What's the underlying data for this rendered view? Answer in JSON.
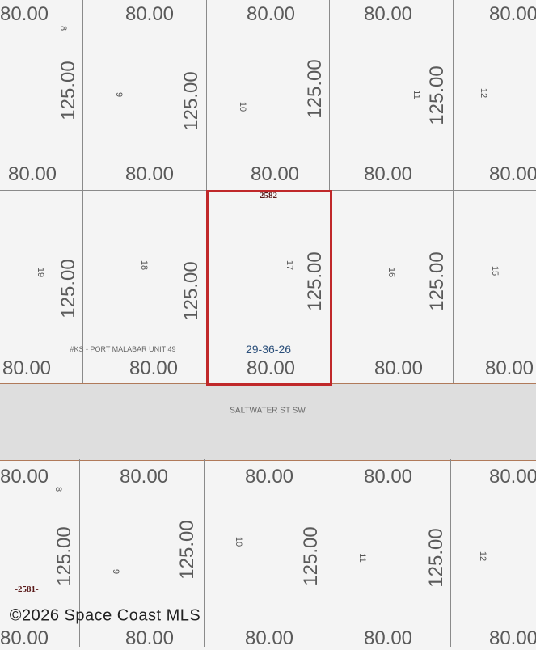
{
  "map": {
    "street_name": "SALTWATER ST SW",
    "subdivision_label": "#KS - PORT MALABAR UNIT 49",
    "section_township_range": "29-36-26",
    "block_labels": [
      "-2582-",
      "-2581-"
    ],
    "watermark": "©2026 Space Coast MLS",
    "selected_lot": "17",
    "highlight_color": "#c0282a",
    "lot_frontage": "80.00",
    "lot_depth": "125.00",
    "top_row_lots": [
      "8",
      "9",
      "10",
      "11",
      "12"
    ],
    "middle_row_lots": [
      "19",
      "18",
      "17",
      "16",
      "15"
    ],
    "bottom_row_lots": [
      "8",
      "9",
      "10",
      "11",
      "12"
    ]
  }
}
